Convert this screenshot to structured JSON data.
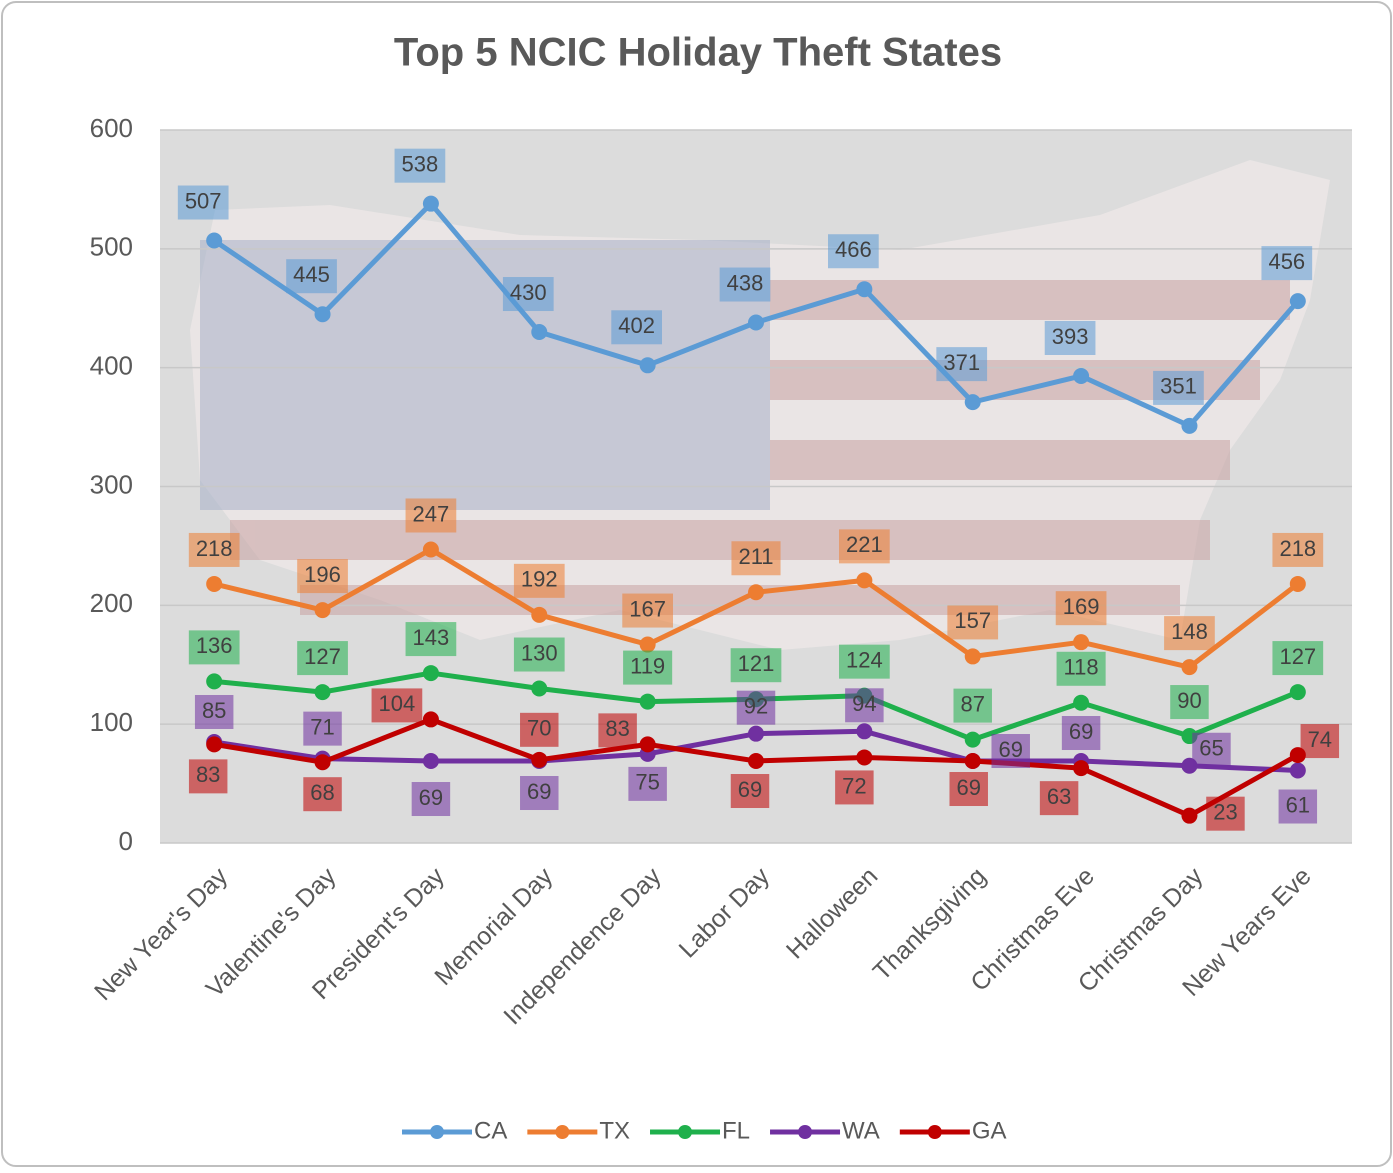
{
  "chart_data": {
    "type": "line",
    "title": "Top 5 NCIC Holiday Theft States",
    "categories": [
      "New Year's Day",
      "Valentine's Day",
      "President's Day",
      "Memorial Day",
      "Independence Day",
      "Labor Day",
      "Halloween",
      "Thanksgiving",
      "Christmas Eve",
      "Christmas Day",
      "New Years Eve"
    ],
    "series": [
      {
        "name": "CA",
        "color": "#5b9bd5",
        "values": [
          507,
          445,
          538,
          430,
          402,
          438,
          466,
          371,
          393,
          351,
          456
        ]
      },
      {
        "name": "TX",
        "color": "#ed7d31",
        "values": [
          218,
          196,
          247,
          192,
          167,
          211,
          221,
          157,
          169,
          148,
          218
        ]
      },
      {
        "name": "FL",
        "color": "#1fb04c",
        "values": [
          136,
          127,
          143,
          130,
          119,
          121,
          124,
          87,
          118,
          90,
          127
        ]
      },
      {
        "name": "WA",
        "color": "#7030a0",
        "values": [
          85,
          71,
          69,
          69,
          75,
          92,
          94,
          69,
          69,
          65,
          61
        ]
      },
      {
        "name": "GA",
        "color": "#c00000",
        "values": [
          83,
          68,
          104,
          70,
          83,
          69,
          72,
          69,
          63,
          23,
          74
        ]
      }
    ],
    "ylim": [
      0,
      600
    ],
    "yticks": [
      0,
      100,
      200,
      300,
      400,
      500,
      600
    ],
    "grid": true,
    "legend": "bottom"
  }
}
